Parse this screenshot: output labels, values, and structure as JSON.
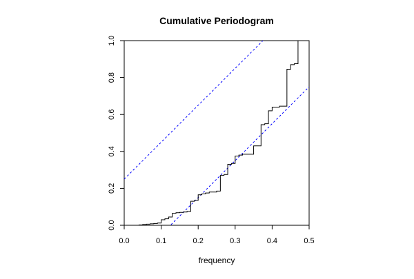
{
  "chart_data": {
    "type": "line",
    "title": "Cumulative Periodogram",
    "xlabel": "frequency",
    "ylabel": "",
    "xlim": [
      0,
      0.5
    ],
    "ylim": [
      0,
      1
    ],
    "x_ticks": [
      "0.0",
      "0.1",
      "0.2",
      "0.3",
      "0.4",
      "0.5"
    ],
    "y_ticks": [
      "0.0",
      "0.2",
      "0.4",
      "0.6",
      "0.8",
      "1.0"
    ],
    "grid": false,
    "legend": "none",
    "series": [
      {
        "style": "step",
        "color": "#000000",
        "x": [
          0.03,
          0.04,
          0.05,
          0.06,
          0.07,
          0.08,
          0.09,
          0.1,
          0.11,
          0.12,
          0.13,
          0.14,
          0.15,
          0.16,
          0.17,
          0.18,
          0.19,
          0.2,
          0.21,
          0.22,
          0.23,
          0.24,
          0.25,
          0.26,
          0.27,
          0.28,
          0.29,
          0.3,
          0.31,
          0.32,
          0.33,
          0.34,
          0.35,
          0.36,
          0.37,
          0.38,
          0.39,
          0.4,
          0.41,
          0.42,
          0.43,
          0.44,
          0.45,
          0.46,
          0.47
        ],
        "y": [
          0.0,
          0.002,
          0.004,
          0.006,
          0.008,
          0.01,
          0.012,
          0.03,
          0.035,
          0.045,
          0.065,
          0.068,
          0.07,
          0.072,
          0.075,
          0.13,
          0.135,
          0.165,
          0.17,
          0.175,
          0.18,
          0.18,
          0.185,
          0.27,
          0.275,
          0.33,
          0.335,
          0.375,
          0.38,
          0.385,
          0.385,
          0.385,
          0.43,
          0.43,
          0.545,
          0.55,
          0.62,
          0.64,
          0.64,
          0.645,
          0.645,
          0.845,
          0.87,
          0.875,
          1.0
        ]
      }
    ],
    "reference_lines": [
      {
        "style": "dashed",
        "color": "#0000ff",
        "slope": 2,
        "intercept": 0.25
      },
      {
        "style": "dashed",
        "color": "#0000ff",
        "slope": 2,
        "intercept": -0.25
      }
    ]
  }
}
